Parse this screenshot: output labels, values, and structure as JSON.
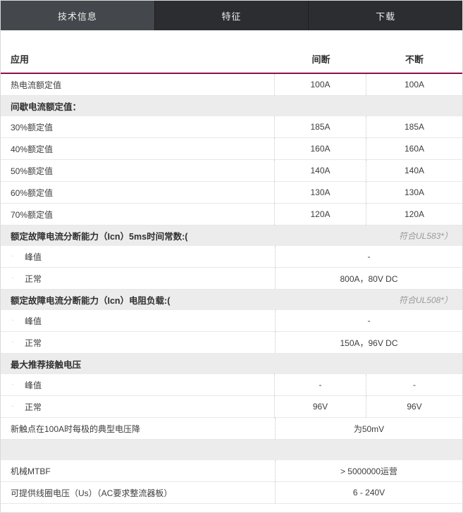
{
  "tabs": [
    {
      "label": "技术信息",
      "active": true
    },
    {
      "label": "特征",
      "active": false
    },
    {
      "label": "下载",
      "active": false
    }
  ],
  "colors": {
    "accent_line": "#8f1049",
    "tabbar_bg": "#2b2d30",
    "tab_active_bg": "#44474b",
    "section_bg": "#ececec"
  },
  "table": {
    "headers": {
      "application": "应用",
      "col1": "间断",
      "col2": "不断"
    },
    "rows": [
      {
        "type": "data",
        "label": "热电流额定值",
        "values": [
          "100A",
          "100A"
        ]
      },
      {
        "type": "section",
        "label": "间歇电流额定值："
      },
      {
        "type": "data",
        "label": "30%额定值",
        "values": [
          "185A",
          "185A"
        ]
      },
      {
        "type": "data",
        "label": "40%额定值",
        "values": [
          "160A",
          "160A"
        ]
      },
      {
        "type": "data",
        "label": "50%额定值",
        "values": [
          "140A",
          "140A"
        ]
      },
      {
        "type": "data",
        "label": "60%额定值",
        "values": [
          "130A",
          "130A"
        ]
      },
      {
        "type": "data",
        "label": "70%额定值",
        "values": [
          "120A",
          "120A"
        ]
      },
      {
        "type": "section",
        "label": "额定故障电流分断能力（Icn）5ms时间常数:(",
        "note": "符合UL583*）"
      },
      {
        "type": "data",
        "label": "峰值",
        "indent": true,
        "bullet": true,
        "span": "-"
      },
      {
        "type": "data",
        "label": "正常",
        "indent": true,
        "bullet": true,
        "span": "800A，80V DC"
      },
      {
        "type": "section",
        "label": "额定故障电流分断能力（Icn）电阻负载:(",
        "note": "符合UL508*）"
      },
      {
        "type": "data",
        "label": "峰值",
        "indent": true,
        "bullet": true,
        "span": "-"
      },
      {
        "type": "data",
        "label": "正常",
        "indent": true,
        "bullet": true,
        "span": "150A，96V DC"
      },
      {
        "type": "section",
        "label": "最大推荐接触电压"
      },
      {
        "type": "data",
        "label": "峰值",
        "indent": true,
        "bullet": true,
        "values": [
          "-",
          "-"
        ]
      },
      {
        "type": "data",
        "label": "正常",
        "indent": true,
        "bullet": true,
        "values": [
          "96V",
          "96V"
        ]
      },
      {
        "type": "data",
        "label": "新触点在100A时每极的典型电压降",
        "span": "为50mV"
      },
      {
        "type": "section",
        "label": ""
      },
      {
        "type": "data",
        "label": "机械MTBF",
        "span": "> 5000000运营"
      },
      {
        "type": "data",
        "label": "可提供线圈电压（Us）（AC要求整流器板）",
        "span": "6 - 240V"
      }
    ]
  }
}
